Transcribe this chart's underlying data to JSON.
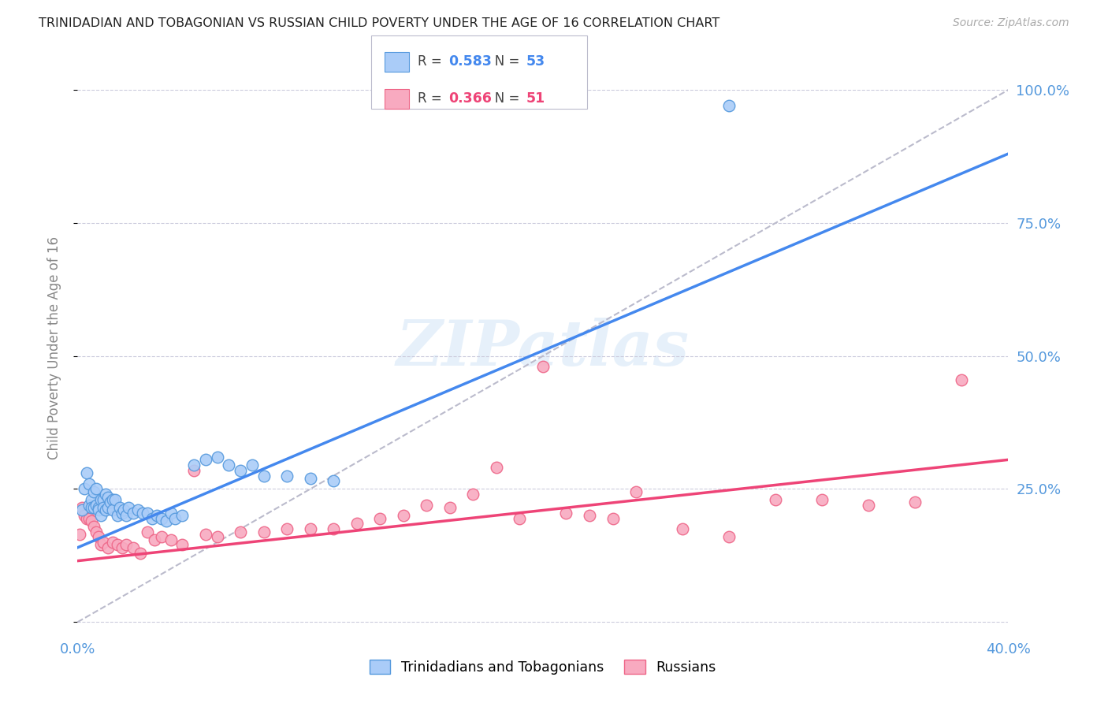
{
  "title": "TRINIDADIAN AND TOBAGONIAN VS RUSSIAN CHILD POVERTY UNDER THE AGE OF 16 CORRELATION CHART",
  "source": "Source: ZipAtlas.com",
  "ylabel": "Child Poverty Under the Age of 16",
  "xlim": [
    0.0,
    0.4
  ],
  "ylim": [
    -0.02,
    1.05
  ],
  "yticks": [
    0.0,
    0.25,
    0.5,
    0.75,
    1.0
  ],
  "ytick_labels": [
    "",
    "25.0%",
    "50.0%",
    "75.0%",
    "100.0%"
  ],
  "xticks": [
    0.0,
    0.05,
    0.1,
    0.15,
    0.2,
    0.25,
    0.3,
    0.35,
    0.4
  ],
  "xtick_labels": [
    "0.0%",
    "",
    "",
    "",
    "",
    "",
    "",
    "",
    "40.0%"
  ],
  "blue_R": "0.583",
  "blue_N": "53",
  "pink_R": "0.366",
  "pink_N": "51",
  "blue_color": "#aaccf8",
  "blue_edge": "#5599dd",
  "pink_color": "#f8aac0",
  "pink_edge": "#ee6688",
  "blue_line_color": "#4488ee",
  "pink_line_color": "#ee4477",
  "gray_line_color": "#bbbbcc",
  "grid_color": "#ccccdd",
  "title_color": "#222222",
  "axis_label_color": "#888888",
  "tick_color": "#5599dd",
  "watermark": "ZIPatlas",
  "blue_scatter_x": [
    0.002,
    0.003,
    0.004,
    0.005,
    0.005,
    0.006,
    0.006,
    0.007,
    0.007,
    0.008,
    0.008,
    0.009,
    0.009,
    0.01,
    0.01,
    0.011,
    0.011,
    0.012,
    0.012,
    0.013,
    0.013,
    0.014,
    0.015,
    0.015,
    0.016,
    0.017,
    0.018,
    0.019,
    0.02,
    0.021,
    0.022,
    0.024,
    0.026,
    0.028,
    0.03,
    0.032,
    0.034,
    0.036,
    0.038,
    0.04,
    0.042,
    0.045,
    0.05,
    0.055,
    0.06,
    0.065,
    0.07,
    0.075,
    0.08,
    0.09,
    0.1,
    0.11,
    0.28
  ],
  "blue_scatter_y": [
    0.21,
    0.25,
    0.28,
    0.22,
    0.26,
    0.23,
    0.215,
    0.245,
    0.215,
    0.25,
    0.22,
    0.215,
    0.21,
    0.23,
    0.2,
    0.23,
    0.215,
    0.24,
    0.21,
    0.235,
    0.215,
    0.225,
    0.23,
    0.21,
    0.23,
    0.2,
    0.215,
    0.205,
    0.21,
    0.2,
    0.215,
    0.205,
    0.21,
    0.205,
    0.205,
    0.195,
    0.2,
    0.195,
    0.19,
    0.205,
    0.195,
    0.2,
    0.295,
    0.305,
    0.31,
    0.295,
    0.285,
    0.295,
    0.275,
    0.275,
    0.27,
    0.265,
    0.97
  ],
  "pink_scatter_x": [
    0.001,
    0.002,
    0.003,
    0.004,
    0.005,
    0.006,
    0.007,
    0.008,
    0.009,
    0.01,
    0.011,
    0.013,
    0.015,
    0.017,
    0.019,
    0.021,
    0.024,
    0.027,
    0.03,
    0.033,
    0.036,
    0.04,
    0.045,
    0.05,
    0.055,
    0.06,
    0.07,
    0.08,
    0.09,
    0.1,
    0.11,
    0.12,
    0.13,
    0.14,
    0.15,
    0.16,
    0.17,
    0.18,
    0.19,
    0.2,
    0.21,
    0.22,
    0.23,
    0.24,
    0.26,
    0.28,
    0.3,
    0.32,
    0.34,
    0.36,
    0.38
  ],
  "pink_scatter_y": [
    0.165,
    0.215,
    0.2,
    0.195,
    0.195,
    0.19,
    0.18,
    0.17,
    0.16,
    0.145,
    0.15,
    0.14,
    0.15,
    0.145,
    0.14,
    0.145,
    0.14,
    0.13,
    0.17,
    0.155,
    0.16,
    0.155,
    0.145,
    0.285,
    0.165,
    0.16,
    0.17,
    0.17,
    0.175,
    0.175,
    0.175,
    0.185,
    0.195,
    0.2,
    0.22,
    0.215,
    0.24,
    0.29,
    0.195,
    0.48,
    0.205,
    0.2,
    0.195,
    0.245,
    0.175,
    0.16,
    0.23,
    0.23,
    0.22,
    0.225,
    0.455
  ]
}
